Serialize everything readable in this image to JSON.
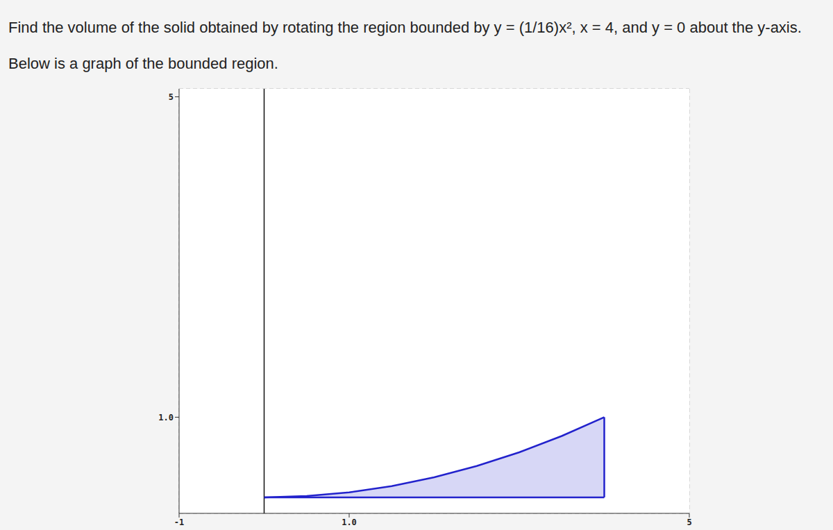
{
  "chart_data": {
    "type": "area",
    "title": "Find the volume of the solid obtained by rotating the region bounded by y = (1/16)x², x = 4, and y = 0 about the y-axis. Below is a graph of the bounded region.",
    "x": [
      0,
      0.5,
      1,
      1.5,
      2,
      2.5,
      3,
      3.5,
      4
    ],
    "values": [
      0,
      0.015625,
      0.0625,
      0.140625,
      0.25,
      0.390625,
      0.5625,
      0.765625,
      1
    ],
    "boundaries": {
      "x": 4,
      "y": 0
    },
    "color": "#2222cc",
    "xlim": [
      -1,
      5
    ],
    "ylim": [
      -0.2,
      5.1
    ],
    "xticks": [
      -1,
      {
        "value": 1,
        "label": "1.0"
      },
      5
    ],
    "yticks": [
      {
        "value": 1,
        "label": "1.0"
      },
      5
    ],
    "grid": true,
    "legend": "none"
  }
}
